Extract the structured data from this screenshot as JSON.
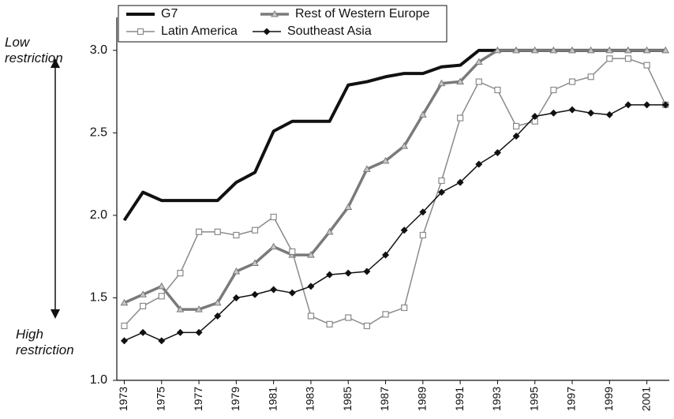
{
  "chart_data": {
    "type": "line",
    "x": [
      1973,
      1974,
      1975,
      1976,
      1977,
      1978,
      1979,
      1980,
      1981,
      1982,
      1983,
      1984,
      1985,
      1986,
      1987,
      1988,
      1989,
      1990,
      1991,
      1992,
      1993,
      1994,
      1995,
      1996,
      1997,
      1998,
      1999,
      2000,
      2001,
      2002
    ],
    "series": [
      {
        "name": "G7",
        "color": "#111111",
        "line_width": 4,
        "marker": "none",
        "values": [
          1.97,
          2.14,
          2.09,
          2.09,
          2.09,
          2.09,
          2.2,
          2.26,
          2.51,
          2.57,
          2.57,
          2.57,
          2.79,
          2.81,
          2.84,
          2.86,
          2.86,
          2.9,
          2.91,
          3.0,
          3.0,
          3.0,
          3.0,
          3.0,
          3.0,
          3.0,
          3.0,
          3.0,
          3.0,
          3.0
        ]
      },
      {
        "name": "Rest of Western Europe",
        "color": "#7a7a7a",
        "line_width": 3.5,
        "marker": "triangle",
        "values": [
          1.47,
          1.52,
          1.57,
          1.43,
          1.43,
          1.47,
          1.66,
          1.71,
          1.81,
          1.76,
          1.76,
          1.9,
          2.05,
          2.28,
          2.33,
          2.42,
          2.61,
          2.8,
          2.81,
          2.93,
          3.0,
          3.0,
          3.0,
          3.0,
          3.0,
          3.0,
          3.0,
          3.0,
          3.0,
          3.0
        ]
      },
      {
        "name": "Latin America",
        "color": "#8a8a8a",
        "line_width": 1.5,
        "marker": "square",
        "values": [
          1.33,
          1.45,
          1.51,
          1.65,
          1.9,
          1.9,
          1.88,
          1.91,
          1.99,
          1.78,
          1.39,
          1.34,
          1.38,
          1.33,
          1.4,
          1.44,
          1.88,
          2.21,
          2.59,
          2.81,
          2.76,
          2.54,
          2.57,
          2.76,
          2.81,
          2.84,
          2.95,
          2.95,
          2.91,
          2.67
        ]
      },
      {
        "name": "Southeast Asia",
        "color": "#111111",
        "line_width": 1.5,
        "marker": "diamond",
        "values": [
          1.24,
          1.29,
          1.24,
          1.29,
          1.29,
          1.39,
          1.5,
          1.52,
          1.55,
          1.53,
          1.57,
          1.64,
          1.65,
          1.66,
          1.76,
          1.91,
          2.02,
          2.14,
          2.2,
          2.31,
          2.38,
          2.48,
          2.6,
          2.62,
          2.64,
          2.62,
          2.61,
          2.67,
          2.67,
          2.67
        ]
      }
    ],
    "xlim": [
      1972.6,
      2002.2
    ],
    "xticks": [
      1973,
      1975,
      1977,
      1979,
      1981,
      1983,
      1985,
      1987,
      1989,
      1991,
      1993,
      1995,
      1997,
      1999,
      2001
    ],
    "ylim": [
      1.0,
      3.2
    ],
    "yticks": [
      {
        "value": 1.0,
        "label": "1.0"
      },
      1.5,
      {
        "value": 2.0,
        "label": "2.0"
      },
      2.5,
      {
        "value": 3.0,
        "label": "3.0"
      }
    ],
    "annotations": [
      "Low restriction",
      "High restriction"
    ],
    "legend": "upper left"
  }
}
